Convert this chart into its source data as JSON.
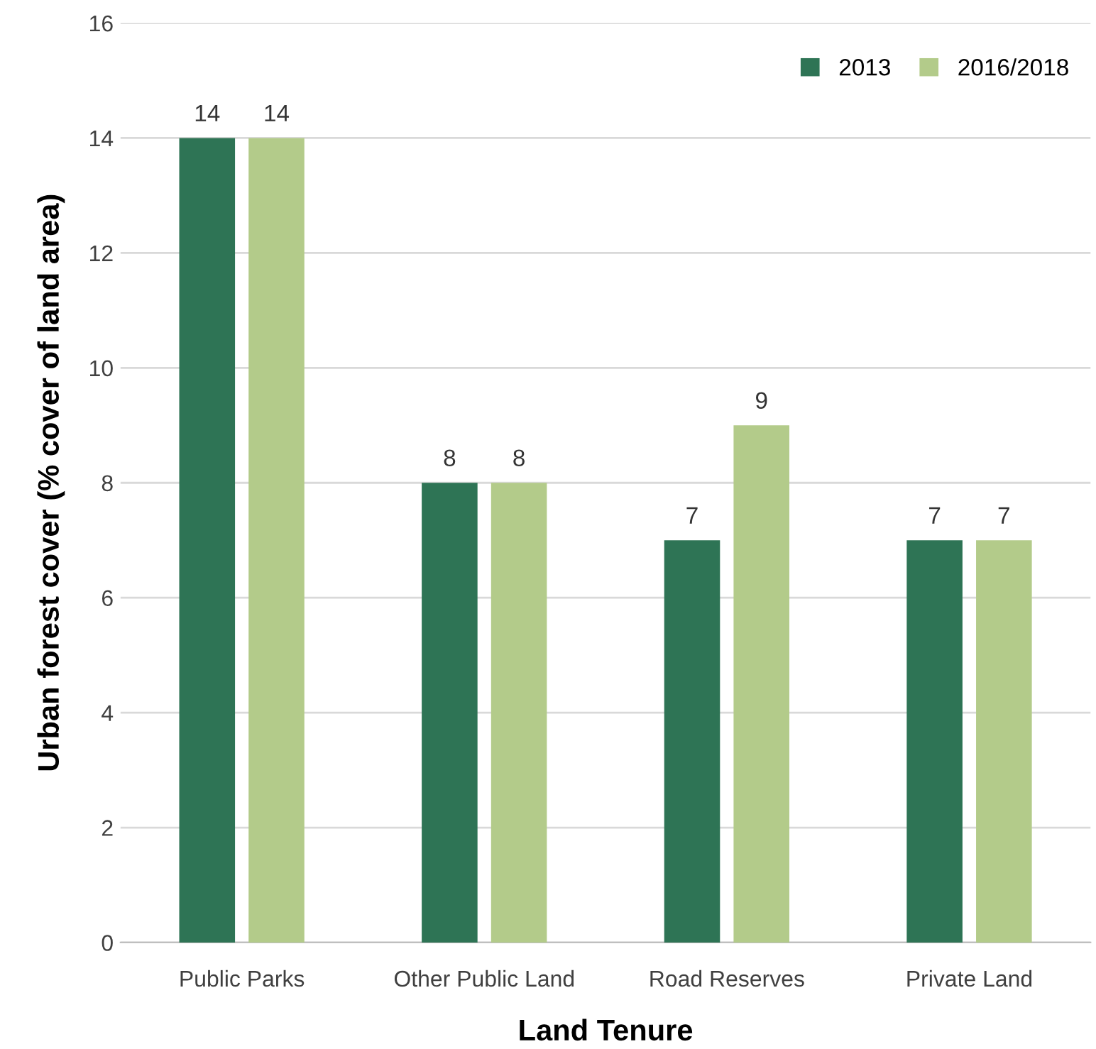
{
  "chart_data": {
    "type": "bar",
    "xlabel": "Land Tenure",
    "ylabel": "Urban forest cover (% cover of land area)",
    "categories": [
      "Public Parks",
      "Other Public Land",
      "Road Reserves",
      "Private Land"
    ],
    "series": [
      {
        "name": "2013",
        "color": "#2e7455",
        "values": [
          14,
          8,
          7,
          7
        ]
      },
      {
        "name": "2016/2018",
        "color": "#b3cb8a",
        "values": [
          14,
          8,
          9,
          7
        ]
      }
    ],
    "ylim": [
      0,
      16
    ],
    "yticks": [
      0,
      2,
      4,
      6,
      8,
      10,
      12,
      14,
      16
    ],
    "grid": "y",
    "legend": "top right",
    "data_labels": true
  }
}
